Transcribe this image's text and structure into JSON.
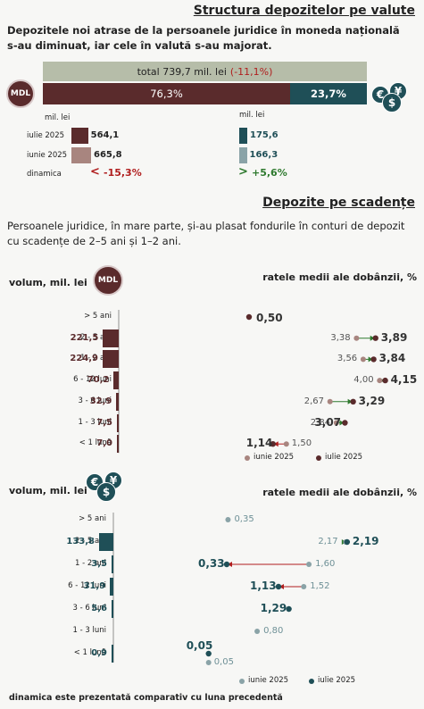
{
  "structure": {
    "title": "Structura depozitelor pe valute",
    "lead": "Depozitele noi atrase de la persoanele juridice în moneda națională s-au diminuat, iar cele în valută s-au majorat.",
    "total_label": "total 739,7 mil. lei",
    "total_change": "(-11,1%)",
    "share_mdl": 76.3,
    "share_mdl_label": "76,3%",
    "share_fx_label": "23,7%",
    "mdl_badge": "MDL",
    "unit_mdl": "mil. lei",
    "unit_fx": "mil. lei",
    "rows": [
      {
        "label": "iulie 2025",
        "mdl": 564.1,
        "mdl_label": "564,1",
        "fx": 175.6,
        "fx_label": "175,6"
      },
      {
        "label": "iunie 2025",
        "mdl": 665.8,
        "mdl_label": "665,8",
        "fx": 166.3,
        "fx_label": "166,3"
      }
    ],
    "dynamics_label": "dinamica",
    "dyn_mdl_arrow": "<",
    "dyn_mdl": "-15,3%",
    "dyn_fx_arrow": ">",
    "dyn_fx": "+5,6%"
  },
  "maturity": {
    "title": "Depozite pe scadențe",
    "lead": "Persoanele juridice, în mare parte, și-au plasat fondurile în conturi de depozit cu scadențe de 2–5 ani și 1–2 ani.",
    "categories": [
      "> 5 ani",
      "2 - 5 ani",
      "1 - 2 ani",
      "6 - 12 luni",
      "3 - 6 luni",
      "1 - 3 luni",
      "< 1 lună"
    ],
    "volume_label": "volum, mil. lei",
    "rates_label": "ratele medii ale dobânzii, %",
    "legend_june": "iunie 2025",
    "legend_july": "iulie 2025",
    "mdl": {
      "volumes": [
        null,
        221.5,
        224.9,
        70.2,
        32.9,
        7.5,
        7.0
      ],
      "volume_labels": [
        "",
        "221,5",
        "224,9",
        "70,2",
        "32,9",
        "7,5",
        "7,0"
      ],
      "rates_june": [
        null,
        3.38,
        3.56,
        4.0,
        2.67,
        2.84,
        1.5
      ],
      "rates_june_labels": [
        "",
        "3,38",
        "3,56",
        "4,00",
        "2,67",
        "2,84",
        "1,50"
      ],
      "rates_july": [
        0.5,
        3.89,
        3.84,
        4.15,
        3.29,
        3.07,
        1.14
      ],
      "rates_july_labels": [
        "0,50",
        "3,89",
        "3,84",
        "4,15",
        "3,29",
        "3,07",
        "1,14"
      ]
    },
    "fx": {
      "volumes": [
        null,
        133.8,
        3.5,
        31.9,
        5.6,
        null,
        0.9
      ],
      "volume_labels": [
        "",
        "133,8",
        "3,5",
        "31,9",
        "5,6",
        "",
        "0,9"
      ],
      "rates_june": [
        0.35,
        2.17,
        1.6,
        1.52,
        null,
        0.8,
        0.05
      ],
      "rates_june_labels": [
        "0,35",
        "2,17",
        "1,60",
        "1,52",
        "",
        "0,80",
        "0,05"
      ],
      "rates_july": [
        null,
        2.19,
        0.33,
        1.13,
        1.29,
        null,
        0.05
      ],
      "rates_july_labels": [
        "",
        "2,19",
        "0,33",
        "1,13",
        "1,29",
        "",
        "0,05"
      ]
    },
    "footnote": "dinamica este prezentată comparativ cu luna precedentă"
  },
  "colors": {
    "mdl": "#5a2b2c",
    "mdl_light": "#a8857f",
    "fx": "#1f4f57",
    "fx_light": "#8aa3a7",
    "total_bar": "#b6bda9",
    "negative": "#b01e1e",
    "positive": "#2f7a2f"
  },
  "icons": [
    "mdl-badge",
    "currency-coins-icon"
  ]
}
